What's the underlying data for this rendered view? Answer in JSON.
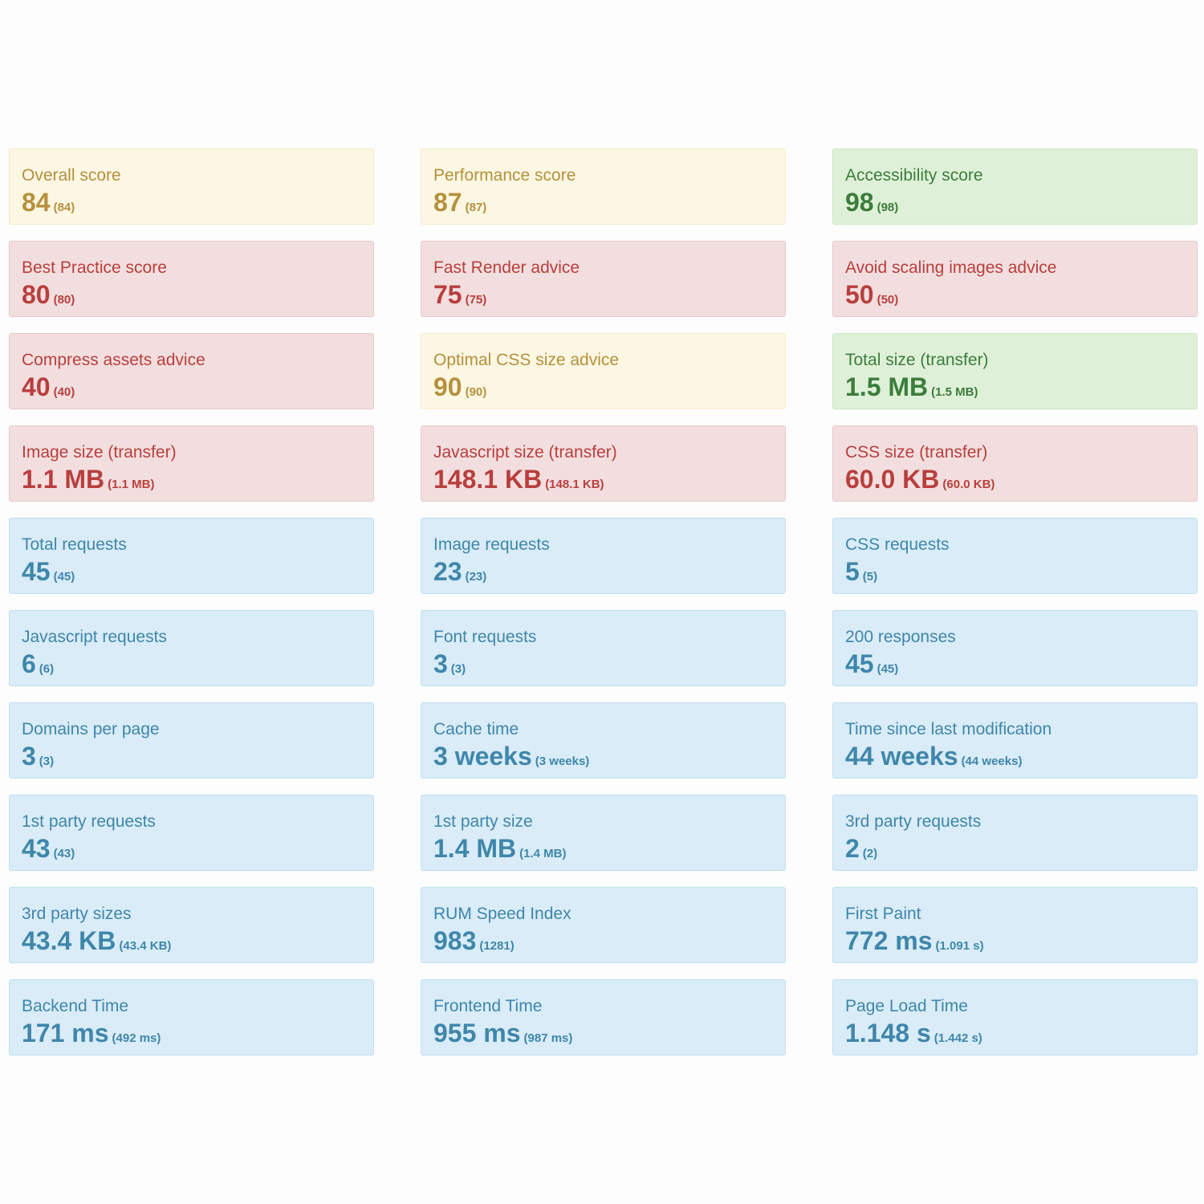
{
  "cards": [
    {
      "label": "Overall score",
      "value": "84",
      "sub": "(84)",
      "status": "warning"
    },
    {
      "label": "Performance score",
      "value": "87",
      "sub": "(87)",
      "status": "warning"
    },
    {
      "label": "Accessibility score",
      "value": "98",
      "sub": "(98)",
      "status": "success"
    },
    {
      "label": "Best Practice score",
      "value": "80",
      "sub": "(80)",
      "status": "danger"
    },
    {
      "label": "Fast Render advice",
      "value": "75",
      "sub": "(75)",
      "status": "danger"
    },
    {
      "label": "Avoid scaling images advice",
      "value": "50",
      "sub": "(50)",
      "status": "danger"
    },
    {
      "label": "Compress assets advice",
      "value": "40",
      "sub": "(40)",
      "status": "danger"
    },
    {
      "label": "Optimal CSS size advice",
      "value": "90",
      "sub": "(90)",
      "status": "warning"
    },
    {
      "label": "Total size (transfer)",
      "value": "1.5 MB",
      "sub": "(1.5 MB)",
      "status": "success"
    },
    {
      "label": "Image size (transfer)",
      "value": "1.1 MB",
      "sub": "(1.1 MB)",
      "status": "danger"
    },
    {
      "label": "Javascript size (transfer)",
      "value": "148.1 KB",
      "sub": "(148.1 KB)",
      "status": "danger"
    },
    {
      "label": "CSS size (transfer)",
      "value": "60.0 KB",
      "sub": "(60.0 KB)",
      "status": "danger"
    },
    {
      "label": "Total requests",
      "value": "45",
      "sub": "(45)",
      "status": "info"
    },
    {
      "label": "Image requests",
      "value": "23",
      "sub": "(23)",
      "status": "info"
    },
    {
      "label": "CSS requests",
      "value": "5",
      "sub": "(5)",
      "status": "info"
    },
    {
      "label": "Javascript requests",
      "value": "6",
      "sub": "(6)",
      "status": "info"
    },
    {
      "label": "Font requests",
      "value": "3",
      "sub": "(3)",
      "status": "info"
    },
    {
      "label": "200 responses",
      "value": "45",
      "sub": "(45)",
      "status": "info"
    },
    {
      "label": "Domains per page",
      "value": "3",
      "sub": "(3)",
      "status": "info"
    },
    {
      "label": "Cache time",
      "value": "3 weeks",
      "sub": "(3 weeks)",
      "status": "info"
    },
    {
      "label": "Time since last modification",
      "value": "44 weeks",
      "sub": "(44 weeks)",
      "status": "info"
    },
    {
      "label": "1st party requests",
      "value": "43",
      "sub": "(43)",
      "status": "info"
    },
    {
      "label": "1st party size",
      "value": "1.4 MB",
      "sub": "(1.4 MB)",
      "status": "info"
    },
    {
      "label": "3rd party requests",
      "value": "2",
      "sub": "(2)",
      "status": "info"
    },
    {
      "label": "3rd party sizes",
      "value": "43.4 KB",
      "sub": "(43.4 KB)",
      "status": "info"
    },
    {
      "label": "RUM Speed Index",
      "value": "983",
      "sub": "(1281)",
      "status": "info"
    },
    {
      "label": "First Paint",
      "value": "772 ms",
      "sub": "(1.091 s)",
      "status": "info"
    },
    {
      "label": "Backend Time",
      "value": "171 ms",
      "sub": "(492 ms)",
      "status": "info"
    },
    {
      "label": "Frontend Time",
      "value": "955 ms",
      "sub": "(987 ms)",
      "status": "info"
    },
    {
      "label": "Page Load Time",
      "value": "1.148 s",
      "sub": "(1.442 s)",
      "status": "info"
    }
  ]
}
